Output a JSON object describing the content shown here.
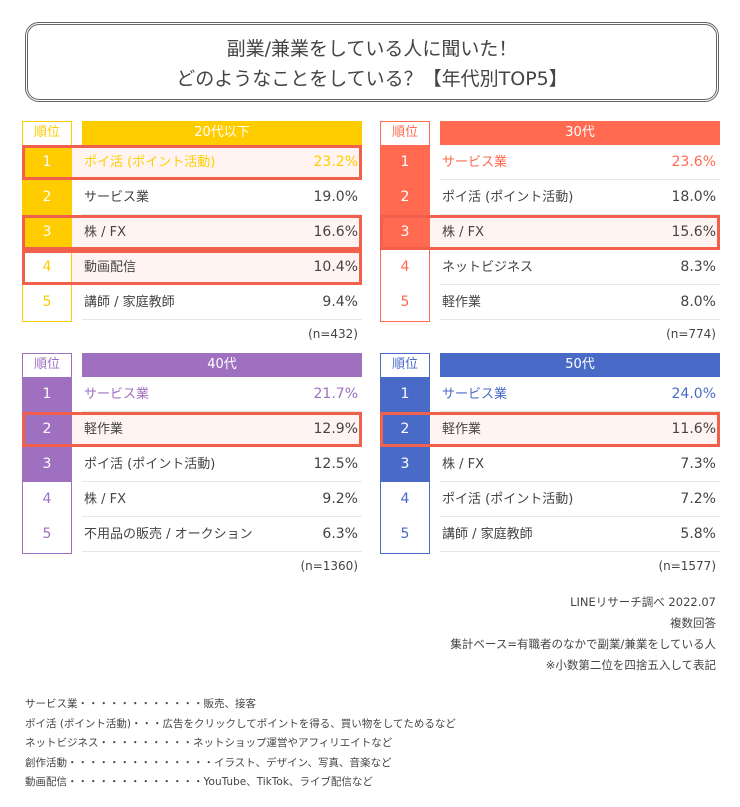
{
  "title": {
    "line1": "副業/兼業をしている人に聞いた！",
    "line2": "どのようなことをしている？【年代別TOP5】"
  },
  "chart_data": {
    "type": "table",
    "rank_header": "順位",
    "highlight_color": "#F0604A",
    "tables": [
      {
        "group": "20代以下",
        "color": "#FFCC00",
        "n": "(n=432)",
        "rows": [
          {
            "rank": "1",
            "item": "ポイ活 (ポイント活動)",
            "value": "23.2%",
            "highlight": true
          },
          {
            "rank": "2",
            "item": "サービス業",
            "value": "19.0%",
            "highlight": false
          },
          {
            "rank": "3",
            "item": "株 / FX",
            "value": "16.6%",
            "highlight": true
          },
          {
            "rank": "4",
            "item": "動画配信",
            "value": "10.4%",
            "highlight": true
          },
          {
            "rank": "5",
            "item": "講師 / 家庭教師",
            "value": "9.4%",
            "highlight": false
          }
        ]
      },
      {
        "group": "30代",
        "color": "#FF6A50",
        "n": "(n=774)",
        "rows": [
          {
            "rank": "1",
            "item": "サービス業",
            "value": "23.6%",
            "highlight": false
          },
          {
            "rank": "2",
            "item": "ポイ活 (ポイント活動)",
            "value": "18.0%",
            "highlight": false
          },
          {
            "rank": "3",
            "item": "株 / FX",
            "value": "15.6%",
            "highlight": true
          },
          {
            "rank": "4",
            "item": "ネットビジネス",
            "value": "8.3%",
            "highlight": false
          },
          {
            "rank": "5",
            "item": "軽作業",
            "value": "8.0%",
            "highlight": false
          }
        ]
      },
      {
        "group": "40代",
        "color": "#A070C0",
        "n": "(n=1360)",
        "rows": [
          {
            "rank": "1",
            "item": "サービス業",
            "value": "21.7%",
            "highlight": false
          },
          {
            "rank": "2",
            "item": "軽作業",
            "value": "12.9%",
            "highlight": true
          },
          {
            "rank": "3",
            "item": "ポイ活 (ポイント活動)",
            "value": "12.5%",
            "highlight": false
          },
          {
            "rank": "4",
            "item": "株 / FX",
            "value": "9.2%",
            "highlight": false
          },
          {
            "rank": "5",
            "item": "不用品の販売 / オークション",
            "value": "6.3%",
            "highlight": false
          }
        ]
      },
      {
        "group": "50代",
        "color": "#4A6AC8",
        "n": "(n=1577)",
        "rows": [
          {
            "rank": "1",
            "item": "サービス業",
            "value": "24.0%",
            "highlight": false
          },
          {
            "rank": "2",
            "item": "軽作業",
            "value": "11.6%",
            "highlight": true
          },
          {
            "rank": "3",
            "item": "株 / FX",
            "value": "7.3%",
            "highlight": false
          },
          {
            "rank": "4",
            "item": "ポイ活 (ポイント活動)",
            "value": "7.2%",
            "highlight": false
          },
          {
            "rank": "5",
            "item": "講師 / 家庭教師",
            "value": "5.8%",
            "highlight": false
          }
        ]
      }
    ]
  },
  "notes": [
    "LINEリサーチ調べ 2022.07",
    "複数回答",
    "集計ベース=有職者のなかで副業/兼業をしている人",
    "※小数第二位を四捨五入して表記"
  ],
  "glossary": [
    "サービス業・・・・・・・・・・・・販売、接客",
    "ポイ活 (ポイント活動)・・・広告をクリックしてポイントを得る、買い物をしてためるなど",
    "ネットビジネス・・・・・・・・・ネットショップ運営やアフィリエイトなど",
    "創作活動・・・・・・・・・・・・・・イラスト、デザイン、写真、音楽など",
    "動画配信・・・・・・・・・・・・・YouTube、TikTok、ライブ配信など"
  ]
}
